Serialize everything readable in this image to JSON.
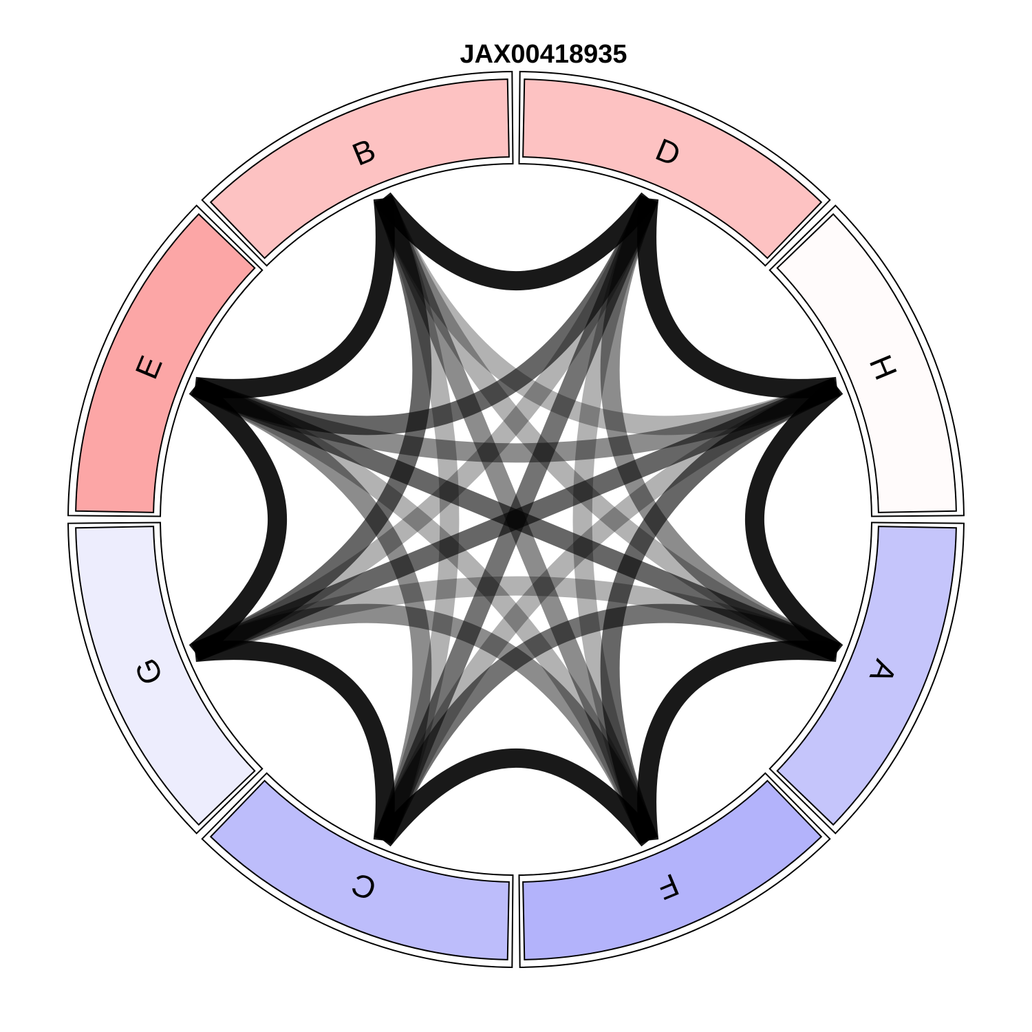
{
  "chart_data": {
    "type": "chord",
    "title": "JAX00418935",
    "sectors": [
      {
        "name": "A",
        "color": "#c5c5fb"
      },
      {
        "name": "F",
        "color": "#b3b3fb"
      },
      {
        "name": "C",
        "color": "#bdbdfb"
      },
      {
        "name": "G",
        "color": "#ededfd"
      },
      {
        "name": "E",
        "color": "#fca6a6"
      },
      {
        "name": "B",
        "color": "#fdc2c2"
      },
      {
        "name": "D",
        "color": "#fdc2c2"
      },
      {
        "name": "H",
        "color": "#fffbfb"
      }
    ],
    "links": [
      {
        "from": "A",
        "to": "F",
        "opacity": 0.9
      },
      {
        "from": "A",
        "to": "C",
        "opacity": 0.55
      },
      {
        "from": "A",
        "to": "G",
        "opacity": 0.3
      },
      {
        "from": "A",
        "to": "E",
        "opacity": 0.6
      },
      {
        "from": "A",
        "to": "B",
        "opacity": 0.3
      },
      {
        "from": "A",
        "to": "D",
        "opacity": 0.45
      },
      {
        "from": "A",
        "to": "H",
        "opacity": 0.9
      },
      {
        "from": "F",
        "to": "C",
        "opacity": 0.9
      },
      {
        "from": "F",
        "to": "G",
        "opacity": 0.45
      },
      {
        "from": "F",
        "to": "E",
        "opacity": 0.3
      },
      {
        "from": "F",
        "to": "B",
        "opacity": 0.45
      },
      {
        "from": "F",
        "to": "D",
        "opacity": 0.3
      },
      {
        "from": "F",
        "to": "H",
        "opacity": 0.6
      },
      {
        "from": "C",
        "to": "G",
        "opacity": 0.9
      },
      {
        "from": "C",
        "to": "E",
        "opacity": 0.45
      },
      {
        "from": "C",
        "to": "B",
        "opacity": 0.3
      },
      {
        "from": "C",
        "to": "D",
        "opacity": 0.55
      },
      {
        "from": "C",
        "to": "H",
        "opacity": 0.3
      },
      {
        "from": "G",
        "to": "E",
        "opacity": 0.9
      },
      {
        "from": "G",
        "to": "B",
        "opacity": 0.6
      },
      {
        "from": "G",
        "to": "D",
        "opacity": 0.3
      },
      {
        "from": "G",
        "to": "H",
        "opacity": 0.6
      },
      {
        "from": "E",
        "to": "B",
        "opacity": 0.9
      },
      {
        "from": "E",
        "to": "D",
        "opacity": 0.6
      },
      {
        "from": "E",
        "to": "H",
        "opacity": 0.45
      },
      {
        "from": "B",
        "to": "D",
        "opacity": 0.9
      },
      {
        "from": "B",
        "to": "H",
        "opacity": 0.3
      },
      {
        "from": "D",
        "to": "H",
        "opacity": 0.9
      }
    ]
  }
}
